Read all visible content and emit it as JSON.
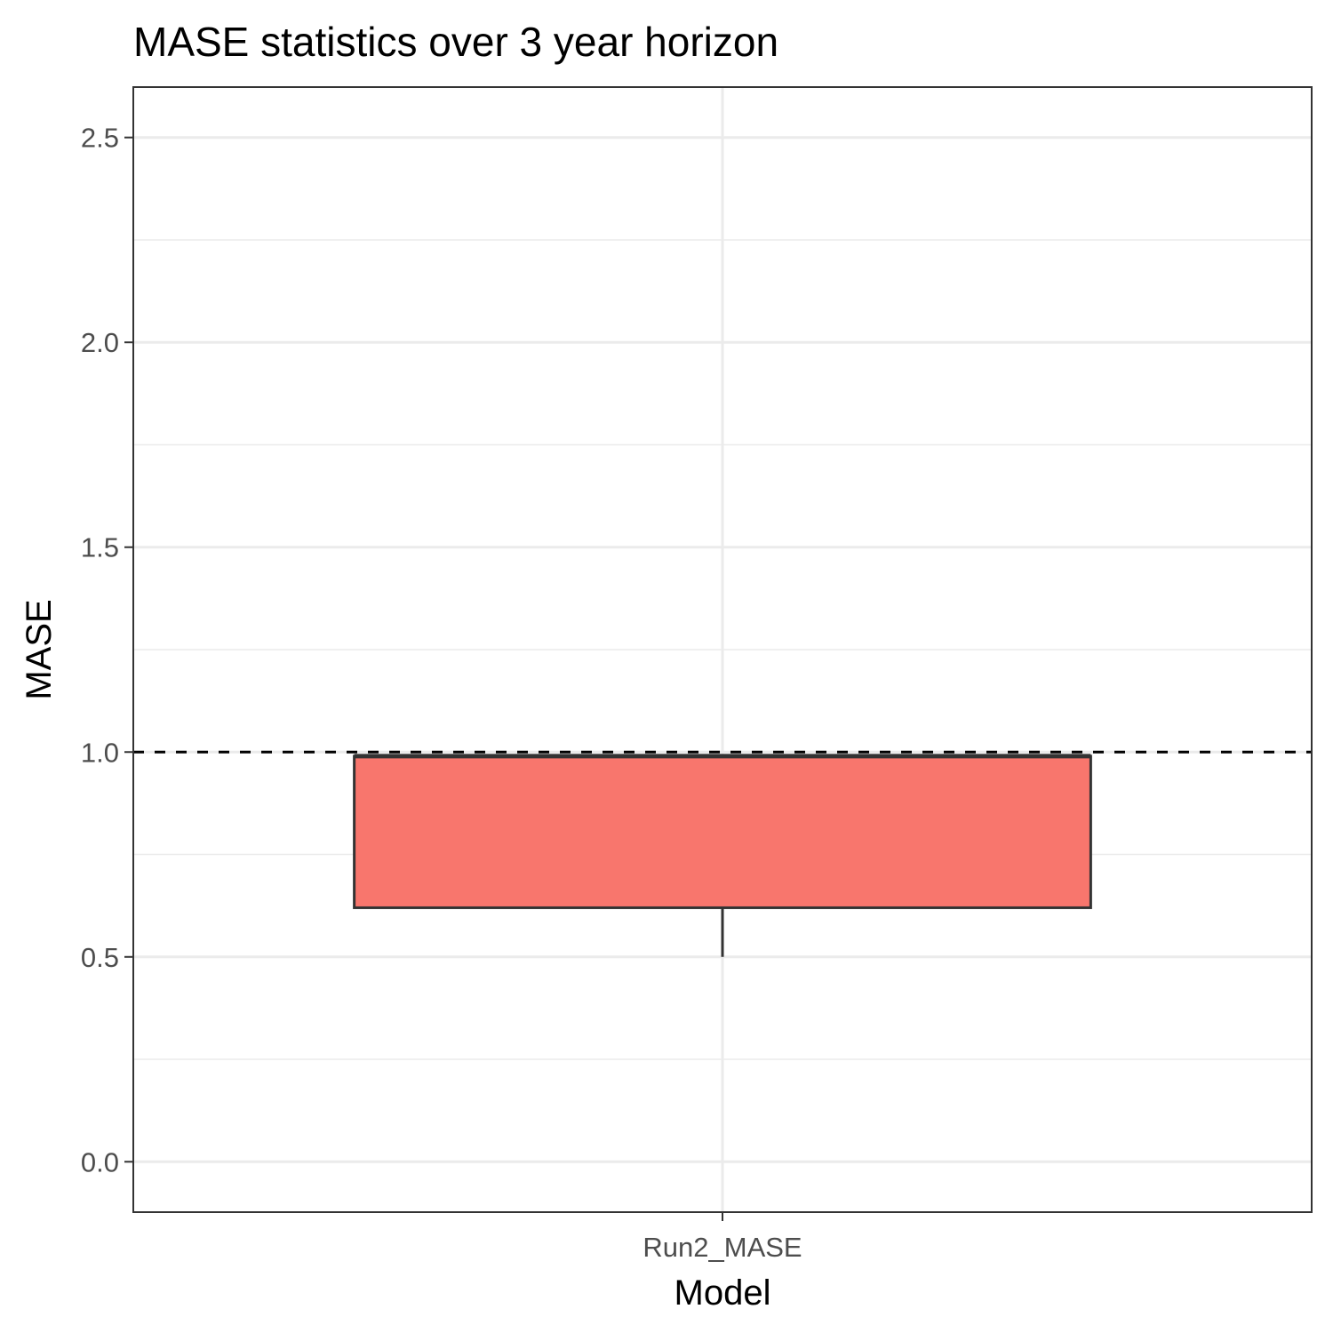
{
  "chart_data": {
    "type": "boxplot",
    "title": "MASE statistics over 3 year horizon",
    "xlabel": "Model",
    "ylabel": "MASE",
    "categories": [
      "Run2_MASE"
    ],
    "boxes": [
      {
        "category": "Run2_MASE",
        "whisker_low": 0.5,
        "q1": 0.62,
        "median": 0.99,
        "q3": 0.99,
        "whisker_high": 0.99
      }
    ],
    "reference_line": {
      "y": 1.0,
      "style": "dashed",
      "color": "#000000"
    },
    "yticks": [
      0.0,
      0.5,
      1.0,
      1.5,
      2.0,
      2.5
    ],
    "ytick_labels": [
      "0.0",
      "0.5",
      "1.0",
      "1.5",
      "2.0",
      "2.5"
    ],
    "ylim": [
      -0.123,
      2.623
    ],
    "grid": true,
    "legend": "none",
    "colors": {
      "box_fill": "#F8766D",
      "box_outline": "#333333",
      "grid": "#ebebeb",
      "panel_border": "#333333"
    }
  }
}
